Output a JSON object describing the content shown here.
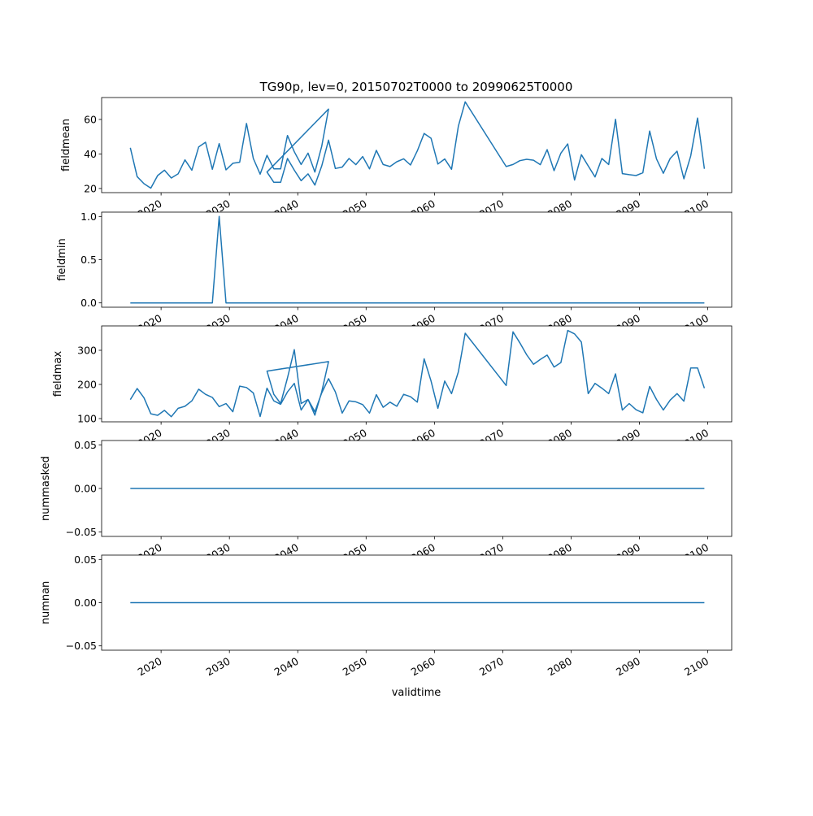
{
  "chart_data": {
    "type": "line",
    "title": "TG90p, lev=0, 20150702T0000 to 20990625T0000",
    "xlabel": "validtime",
    "xlim": [
      2011.3,
      2103.5
    ],
    "x_ticks": [
      2020,
      2030,
      2040,
      2050,
      2060,
      2070,
      2080,
      2090,
      2100
    ],
    "x_tick_labels": [
      "2020",
      "2030",
      "2040",
      "2050",
      "2060",
      "2070",
      "2080",
      "2090",
      "2100"
    ],
    "color": "#1f77b4",
    "x": [
      2015.5,
      2016.5,
      2017.5,
      2018.5,
      2019.5,
      2020.5,
      2021.5,
      2022.5,
      2023.5,
      2024.5,
      2025.5,
      2026.5,
      2027.5,
      2028.5,
      2029.5,
      2030.5,
      2031.5,
      2032.5,
      2033.5,
      2034.5,
      2035.5,
      2036.5,
      2037.5,
      2038.5,
      2039.5,
      2040.5,
      2041.5,
      2042.5,
      2043.5,
      2044.5,
      2035.5,
      2036.5,
      2037.5,
      2038.5,
      2039.5,
      2040.5,
      2041.5,
      2042.5,
      2043.5,
      2044.5,
      2045.5,
      2046.5,
      2047.5,
      2048.5,
      2049.5,
      2050.5,
      2051.5,
      2052.5,
      2053.5,
      2054.5,
      2055.5,
      2056.5,
      2057.5,
      2058.5,
      2059.5,
      2060.5,
      2061.5,
      2062.5,
      2063.5,
      2064.5,
      2070.5,
      2071.5,
      2072.5,
      2073.5,
      2074.5,
      2075.5,
      2076.5,
      2077.5,
      2078.5,
      2079.5,
      2080.5,
      2081.5,
      2082.5,
      2083.5,
      2084.5,
      2085.5,
      2086.5,
      2087.5,
      2088.5,
      2089.5,
      2090.5,
      2091.5,
      2092.5,
      2093.5,
      2094.5,
      2095.5,
      2096.5,
      2097.5,
      2098.5,
      2099.5
    ],
    "panels": [
      {
        "ylabel": "fieldmean",
        "ylim": [
          17.6,
          72.7
        ],
        "y_ticks": [
          20,
          40,
          60
        ],
        "y_tick_labels": [
          "20",
          "40",
          "60"
        ],
        "values": [
          43.6,
          26.9,
          22.8,
          20.2,
          27.5,
          30.6,
          26.1,
          28.5,
          36.6,
          30.6,
          44.1,
          46.8,
          31.1,
          46.0,
          30.8,
          34.6,
          35.2,
          57.7,
          37.4,
          28.3,
          39.2,
          31.4,
          31.4,
          50.7,
          41.3,
          33.9,
          40.5,
          29.5,
          44.4,
          66.0,
          29.5,
          23.6,
          23.6,
          37.4,
          30.6,
          24.5,
          28.5,
          22.0,
          33.0,
          48.0,
          31.6,
          32.4,
          37.4,
          33.8,
          38.5,
          31.4,
          42.1,
          33.9,
          32.7,
          35.5,
          37.2,
          33.6,
          41.8,
          51.9,
          49.1,
          34.2,
          37.1,
          31.1,
          56.1,
          70.2,
          32.7,
          33.9,
          36.1,
          36.9,
          36.4,
          33.8,
          42.5,
          30.3,
          40.5,
          45.8,
          24.9,
          39.6,
          33.1,
          26.7,
          37.4,
          33.9,
          60.1,
          28.6,
          28.0,
          27.5,
          29.1,
          53.3,
          37.1,
          28.8,
          37.4,
          41.6,
          25.6,
          38.9,
          60.8,
          31.4
        ]
      },
      {
        "ylabel": "fieldmin",
        "ylim": [
          -0.05,
          1.05
        ],
        "y_ticks": [
          0,
          0.5,
          1.0
        ],
        "y_tick_labels": [
          "0.0",
          "0.5",
          "1.0"
        ],
        "values": [
          0,
          0,
          0,
          0,
          0,
          0,
          0,
          0,
          0,
          0,
          0,
          0,
          0,
          1,
          0,
          0,
          0,
          0,
          0,
          0,
          0,
          0,
          0,
          0,
          0,
          0,
          0,
          0,
          0,
          0,
          0,
          0,
          0,
          0,
          0,
          0,
          0,
          0,
          0,
          0,
          0,
          0,
          0,
          0,
          0,
          0,
          0,
          0,
          0,
          0,
          0,
          0,
          0,
          0,
          0,
          0,
          0,
          0,
          0,
          0,
          0,
          0,
          0,
          0,
          0,
          0,
          0,
          0,
          0,
          0,
          0,
          0,
          0,
          0,
          0,
          0,
          0,
          0,
          0,
          0,
          0,
          0,
          0,
          0,
          0,
          0,
          0,
          0,
          0,
          0
        ]
      },
      {
        "ylabel": "fieldmax",
        "ylim": [
          90.5,
          371.4
        ],
        "y_ticks": [
          100,
          200,
          300
        ],
        "y_tick_labels": [
          "100",
          "200",
          "300"
        ],
        "values": [
          155.6,
          188,
          161,
          114,
          109.5,
          124,
          105.6,
          130,
          136,
          152,
          186,
          171,
          162,
          135,
          144,
          120,
          195,
          191,
          175,
          106,
          189,
          152,
          142,
          178,
          203,
          125,
          156,
          110,
          178,
          267,
          239,
          171,
          144,
          219,
          302,
          144,
          156,
          120,
          175,
          217,
          178,
          116,
          152,
          149,
          141,
          116,
          170,
          133,
          148,
          136,
          171,
          164,
          148,
          275,
          210,
          130,
          210,
          173,
          237,
          350,
          197,
          354,
          322,
          287,
          259,
          273,
          286,
          251,
          264,
          358,
          348,
          324,
          173,
          203,
          189,
          173,
          231,
          125,
          144,
          126,
          117,
          194,
          156,
          125,
          154,
          173,
          151,
          248,
          248,
          189
        ]
      },
      {
        "ylabel": "nummasked",
        "ylim": [
          -0.055,
          0.055
        ],
        "y_ticks": [
          -0.05,
          0,
          0.05
        ],
        "y_tick_labels": [
          "−0.05",
          "0.00",
          "0.05"
        ],
        "values": [
          0,
          0,
          0,
          0,
          0,
          0,
          0,
          0,
          0,
          0,
          0,
          0,
          0,
          0,
          0,
          0,
          0,
          0,
          0,
          0,
          0,
          0,
          0,
          0,
          0,
          0,
          0,
          0,
          0,
          0,
          0,
          0,
          0,
          0,
          0,
          0,
          0,
          0,
          0,
          0,
          0,
          0,
          0,
          0,
          0,
          0,
          0,
          0,
          0,
          0,
          0,
          0,
          0,
          0,
          0,
          0,
          0,
          0,
          0,
          0,
          0,
          0,
          0,
          0,
          0,
          0,
          0,
          0,
          0,
          0,
          0,
          0,
          0,
          0,
          0,
          0,
          0,
          0,
          0,
          0,
          0,
          0,
          0,
          0,
          0,
          0,
          0,
          0,
          0,
          0
        ]
      },
      {
        "ylabel": "numnan",
        "ylim": [
          -0.055,
          0.055
        ],
        "y_ticks": [
          -0.05,
          0,
          0.05
        ],
        "y_tick_labels": [
          "−0.05",
          "0.00",
          "0.05"
        ],
        "values": [
          0,
          0,
          0,
          0,
          0,
          0,
          0,
          0,
          0,
          0,
          0,
          0,
          0,
          0,
          0,
          0,
          0,
          0,
          0,
          0,
          0,
          0,
          0,
          0,
          0,
          0,
          0,
          0,
          0,
          0,
          0,
          0,
          0,
          0,
          0,
          0,
          0,
          0,
          0,
          0,
          0,
          0,
          0,
          0,
          0,
          0,
          0,
          0,
          0,
          0,
          0,
          0,
          0,
          0,
          0,
          0,
          0,
          0,
          0,
          0,
          0,
          0,
          0,
          0,
          0,
          0,
          0,
          0,
          0,
          0,
          0,
          0,
          0,
          0,
          0,
          0,
          0,
          0,
          0,
          0,
          0,
          0,
          0,
          0,
          0,
          0,
          0,
          0,
          0,
          0
        ]
      }
    ]
  }
}
